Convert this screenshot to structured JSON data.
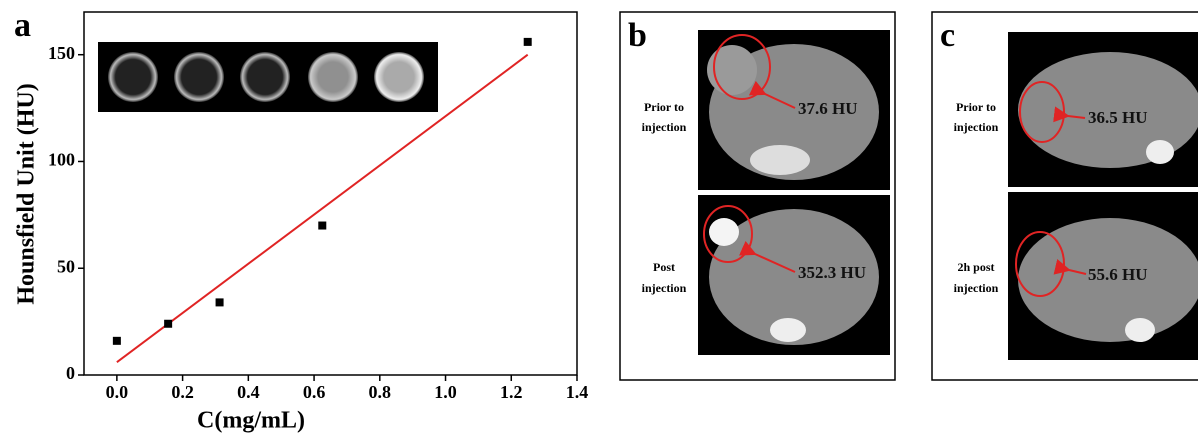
{
  "chart_data": {
    "type": "scatter",
    "panel": "a",
    "x_label": "C(mg/mL)",
    "y_label": "Hounsfield Unit (HU)",
    "x": [
      0,
      0.156,
      0.3125,
      0.625,
      1.25
    ],
    "values": [
      16,
      24,
      34,
      70,
      156
    ],
    "color": "#000000",
    "fit_line": {
      "color": "#e02424",
      "x": [
        0,
        1.25
      ],
      "values": [
        6,
        150
      ]
    },
    "xlim": [
      -0.1,
      1.4
    ],
    "ylim": [
      0,
      170
    ],
    "xticks": [
      {
        "value": 0,
        "label": "0.0"
      },
      {
        "value": 0.2,
        "label": "0.2"
      },
      {
        "value": 0.4,
        "label": "0.4"
      },
      {
        "value": 0.6,
        "label": "0.6"
      },
      {
        "value": 0.8,
        "label": "0.8"
      },
      {
        "value": 1.0,
        "label": "1.0"
      },
      {
        "value": 1.2,
        "label": "1.2"
      },
      {
        "value": 1.4,
        "label": "1.4"
      }
    ],
    "yticks": [
      0,
      50,
      100,
      150
    ]
  },
  "panels": [
    {
      "label": "b",
      "rows": [
        {
          "caption": [
            "Prior to",
            "injection"
          ],
          "annotation": "37.6 HU"
        },
        {
          "caption": [
            "Post",
            "injection"
          ],
          "annotation": "352.3 HU"
        }
      ]
    },
    {
      "label": "c",
      "rows": [
        {
          "caption": [
            "Prior to",
            "injection"
          ],
          "annotation": "36.5 HU"
        },
        {
          "caption": [
            "2h post",
            "injection"
          ],
          "annotation": "55.6 HU"
        }
      ]
    }
  ]
}
